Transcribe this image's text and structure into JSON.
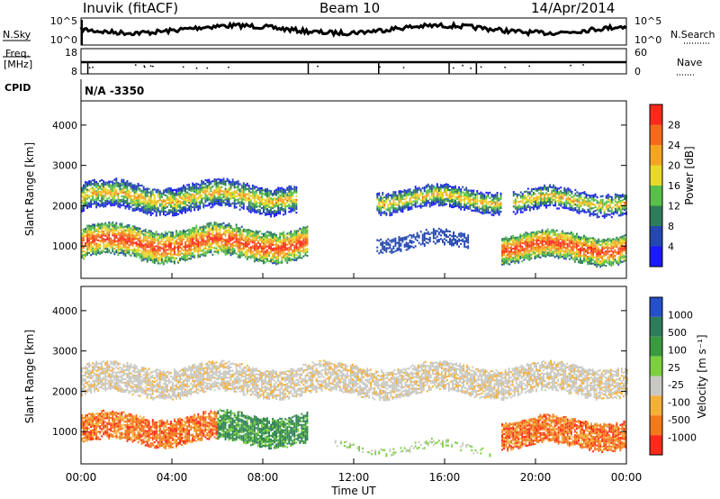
{
  "header": {
    "station": "Inuvik (fitACF)",
    "beam": "Beam 10",
    "date": "14/Apr/2014"
  },
  "strips": {
    "nsky_label": "N.Sky",
    "nsky_ticks": [
      "10^5",
      "10^0"
    ],
    "nsearch_label": "N.Search",
    "nsearch_ticks": [
      "10^5",
      "10^0"
    ],
    "freq_label_line1": "Freq.",
    "freq_label_line2": "[MHz]",
    "freq_ticks": [
      "18",
      "8"
    ],
    "nave_label": "Nave",
    "nave_ticks": [
      "60",
      "0"
    ],
    "cpid_label": "CPID",
    "cpid_value": "N/A -3350"
  },
  "colors": {
    "power_scale": [
      "#1a1aff",
      "#2448b0",
      "#2e7d5a",
      "#58c04a",
      "#e8d82a",
      "#f5a524",
      "#f36a1c",
      "#ff2a1a"
    ],
    "velocity_scale": [
      "#2450c8",
      "#2e7d5a",
      "#3a9a40",
      "#7ccf3e",
      "#c9c9c4",
      "#f5b03a",
      "#f07a1c",
      "#ff2a1a"
    ]
  },
  "chart_data": [
    {
      "type": "heatmap",
      "name": "power",
      "xlabel": "",
      "ylabel": "Slant Range [km]",
      "x_range": [
        "00:00",
        "00:00"
      ],
      "x_hours": [
        0,
        24
      ],
      "ylim": [
        200,
        4600
      ],
      "yticks": [
        "1000",
        "2000",
        "3000",
        "4000"
      ],
      "colorbar": {
        "label": "Power [dB]",
        "ticks": [
          "4",
          "8",
          "12",
          "16",
          "20",
          "24",
          "28"
        ]
      },
      "scatter_bands": [
        {
          "t0": 0,
          "t1": 10.0,
          "center_km": 1050,
          "level": "high"
        },
        {
          "t0": 0,
          "t1": 9.5,
          "center_km": 2200,
          "level": "mid"
        },
        {
          "t0": 13,
          "t1": 18.5,
          "center_km": 2150,
          "level": "mid"
        },
        {
          "t0": 18.5,
          "t1": 24,
          "center_km": 950,
          "level": "high"
        },
        {
          "t0": 19,
          "t1": 24,
          "center_km": 2100,
          "level": "mid"
        }
      ]
    },
    {
      "type": "heatmap",
      "name": "velocity",
      "xlabel": "Time UT",
      "ylabel": "Slant Range [km]",
      "x_range": [
        "00:00",
        "00:00"
      ],
      "x_hours": [
        0,
        24
      ],
      "ylim": [
        200,
        4600
      ],
      "yticks": [
        "1000",
        "2000",
        "3000",
        "4000"
      ],
      "xticks": [
        "00:00",
        "04:00",
        "08:00",
        "12:00",
        "16:00",
        "20:00",
        "00:00"
      ],
      "colorbar": {
        "label": "Velocity [m s⁻¹]",
        "ticks": [
          "1000",
          "500",
          "100",
          "25",
          "-25",
          "-100",
          "-500",
          "-1000"
        ]
      },
      "scatter_bands": [
        {
          "t0": 0,
          "t1": 6,
          "center_km": 1050,
          "velocity": "-100 to -500"
        },
        {
          "t0": 6,
          "t1": 10,
          "center_km": 1050,
          "velocity": "100 to 500"
        },
        {
          "t0": 0,
          "t1": 24,
          "center_km": 2250,
          "velocity": "-25 to 25"
        },
        {
          "t0": 18.5,
          "t1": 24,
          "center_km": 950,
          "velocity": "-100 to -500"
        }
      ]
    }
  ]
}
